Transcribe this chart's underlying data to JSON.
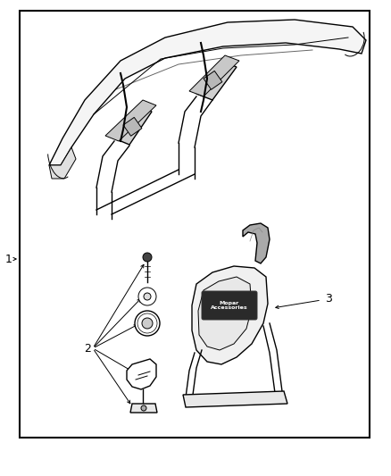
{
  "bg_color": "#ffffff",
  "border_color": "#000000",
  "border_lw": 2.0,
  "fig_width": 4.38,
  "fig_height": 5.33,
  "label_1": "1",
  "label_2": "2",
  "label_3": "3",
  "text_color": "#000000",
  "line_color": "#000000",
  "mopar_text": "Mopar\nAccessories"
}
